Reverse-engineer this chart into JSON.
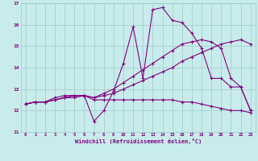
{
  "xlabel": "Windchill (Refroidissement éolien,°C)",
  "bg_color": "#c8ecec",
  "grid_color": "#a0c8c8",
  "line_color": "#800080",
  "xlim": [
    -0.5,
    23.5
  ],
  "ylim": [
    11,
    17
  ],
  "yticks": [
    11,
    12,
    13,
    14,
    15,
    16,
    17
  ],
  "xticks": [
    0,
    1,
    2,
    3,
    4,
    5,
    6,
    7,
    8,
    9,
    10,
    11,
    12,
    13,
    14,
    15,
    16,
    17,
    18,
    19,
    20,
    21,
    22,
    23
  ],
  "series": [
    {
      "x": [
        0,
        1,
        2,
        3,
        4,
        5,
        6,
        7,
        8,
        9,
        10,
        11,
        12,
        13,
        14,
        15,
        16,
        17,
        18,
        19,
        20,
        21,
        22,
        23
      ],
      "y": [
        12.3,
        12.4,
        12.4,
        12.5,
        12.6,
        12.6,
        12.7,
        12.5,
        12.5,
        12.5,
        12.5,
        12.5,
        12.5,
        12.5,
        12.5,
        12.5,
        12.4,
        12.4,
        12.3,
        12.2,
        12.1,
        12.0,
        12.0,
        11.9
      ]
    },
    {
      "x": [
        0,
        1,
        2,
        3,
        4,
        5,
        6,
        7,
        8,
        9,
        10,
        11,
        12,
        13,
        14,
        15,
        16,
        17,
        18,
        19,
        20,
        21,
        22,
        23
      ],
      "y": [
        12.3,
        12.4,
        12.4,
        12.5,
        12.6,
        12.7,
        12.7,
        12.6,
        12.7,
        12.8,
        13.0,
        13.2,
        13.4,
        13.6,
        13.8,
        14.0,
        14.3,
        14.5,
        14.7,
        14.9,
        15.1,
        15.2,
        15.3,
        15.1
      ]
    },
    {
      "x": [
        0,
        1,
        2,
        3,
        4,
        5,
        6,
        7,
        8,
        9,
        10,
        11,
        12,
        13,
        14,
        15,
        16,
        17,
        18,
        19,
        20,
        21,
        22,
        23
      ],
      "y": [
        12.3,
        12.4,
        12.4,
        12.5,
        12.6,
        12.7,
        12.7,
        12.6,
        12.8,
        13.0,
        13.3,
        13.6,
        13.9,
        14.2,
        14.5,
        14.8,
        15.1,
        15.2,
        15.3,
        15.2,
        14.9,
        13.5,
        13.1,
        12.0
      ]
    },
    {
      "x": [
        0,
        1,
        2,
        3,
        4,
        5,
        6,
        7,
        8,
        9,
        10,
        11,
        12,
        13,
        14,
        15,
        16,
        17,
        18,
        19,
        20,
        21,
        22,
        23
      ],
      "y": [
        12.3,
        12.4,
        12.4,
        12.6,
        12.7,
        12.7,
        12.7,
        11.5,
        12.0,
        12.9,
        14.2,
        15.9,
        13.5,
        16.7,
        16.8,
        16.2,
        16.1,
        15.6,
        14.9,
        13.5,
        13.5,
        13.1,
        13.1,
        12.0
      ]
    }
  ]
}
